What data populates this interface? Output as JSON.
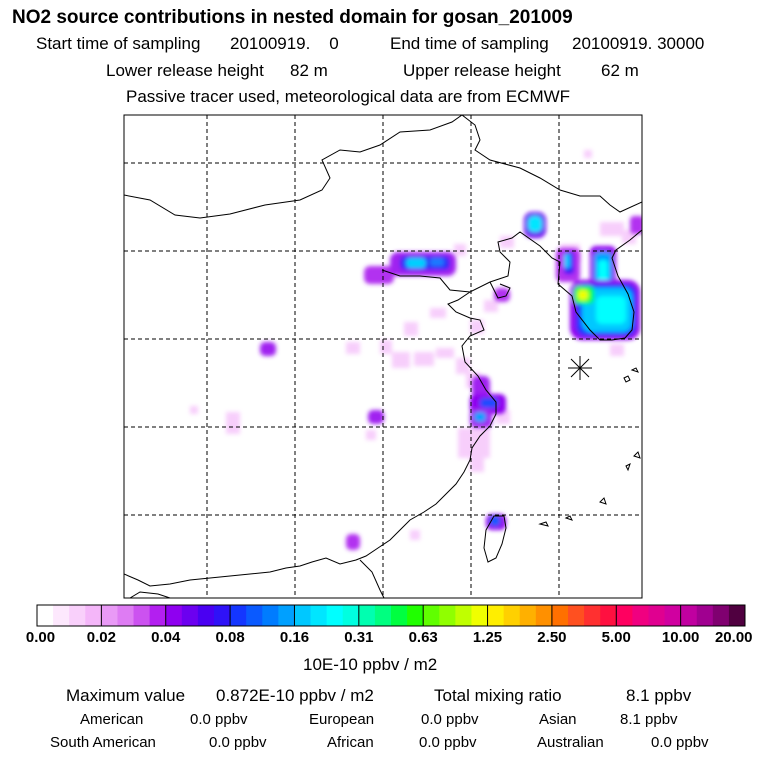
{
  "header": {
    "title": "NO2 source contributions in nested domain for gosan_201009",
    "start_label": "Start time of sampling",
    "start_value": "20100919.    0",
    "end_label": "End time of sampling",
    "end_value": "20100919. 30000",
    "lower_label": "Lower release height",
    "lower_value": "82 m",
    "upper_label": "Upper release height",
    "upper_value": "62 m",
    "note": "Passive tracer used, meteorological data are from ECMWF"
  },
  "colorbar": {
    "labels": [
      "0.00",
      "0.02",
      "0.04",
      "0.08",
      "0.16",
      "0.31",
      "0.63",
      "1.25",
      "2.50",
      "5.00",
      "10.00",
      "20.00"
    ],
    "colors": [
      [
        "#ffffff",
        "#fde8fd",
        "#f9d0fb",
        "#f4b6f9"
      ],
      [
        "#e99af6",
        "#de7cf3",
        "#cc52f0",
        "#b31ff0"
      ],
      [
        "#8f00f0",
        "#6c00f0",
        "#4a00f2",
        "#2f12f8"
      ],
      [
        "#1436ff",
        "#0a5aff",
        "#007cff",
        "#00a0ff"
      ],
      [
        "#00c8ff",
        "#00e6ff",
        "#00ffff",
        "#00ffe0"
      ],
      [
        "#00ffb0",
        "#00ff80",
        "#00ff40",
        "#20ff00"
      ],
      [
        "#60ff00",
        "#90ff00",
        "#c0ff00",
        "#f0ff00"
      ],
      [
        "#ffee00",
        "#ffd000",
        "#ffb000",
        "#ff9000"
      ],
      [
        "#ff7000",
        "#ff5020",
        "#ff3030",
        "#ff1040"
      ],
      [
        "#ff0060",
        "#f00080",
        "#e00090",
        "#d000a0"
      ],
      [
        "#c000a0",
        "#a00090",
        "#800070",
        "#500040"
      ]
    ],
    "unit": "10E-10 ppbv / m2"
  },
  "stats": {
    "max_label": "Maximum value",
    "max_value": "0.872E-10 ppbv / m2",
    "total_label": "Total mixing ratio",
    "total_value": "8.1 ppbv",
    "regions": [
      {
        "name": "American",
        "value": "0.0 ppbv"
      },
      {
        "name": "European",
        "value": "0.0 ppbv"
      },
      {
        "name": "Asian",
        "value": "8.1 ppbv"
      },
      {
        "name": "South American",
        "value": "0.0 ppbv"
      },
      {
        "name": "African",
        "value": "0.0 ppbv"
      },
      {
        "name": "Australian",
        "value": "0.0 ppbv"
      }
    ]
  },
  "map": {
    "receptor_marker": "gosan-receptor"
  }
}
